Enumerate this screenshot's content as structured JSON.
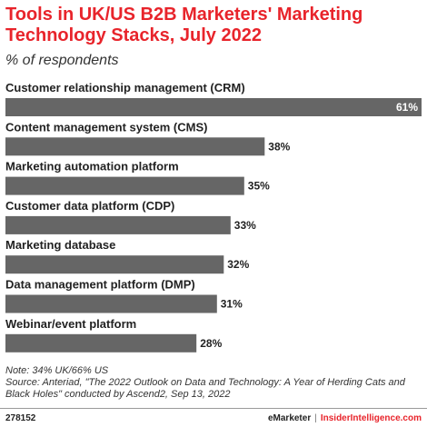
{
  "chart_data": {
    "type": "bar",
    "orientation": "horizontal",
    "title": "Tools in UK/US B2B Marketers' Marketing Technology Stacks, July 2022",
    "subtitle": "% of respondents",
    "categories": [
      "Customer relationship management (CRM)",
      "Content management system (CMS)",
      "Marketing automation platform",
      "Customer data platform (CDP)",
      "Marketing database",
      "Data management platform (DMP)",
      "Webinar/event platform"
    ],
    "values": [
      61,
      38,
      35,
      33,
      32,
      31,
      28
    ],
    "value_labels": [
      "61%",
      "38%",
      "35%",
      "33%",
      "32%",
      "31%",
      "28%"
    ],
    "bar_color": "#666666",
    "grid": false,
    "legend": "none"
  },
  "footnote": {
    "note": "Note: 34% UK/66% US",
    "source": "Source: Anteriad, \"The 2022 Outlook on Data and Technology: A Year of Herding Cats and Black Holes\" conducted by Ascend2, Sep 13, 2022"
  },
  "footer": {
    "chart_id": "278152",
    "brand_left": "eMarketer",
    "separator": "|",
    "brand_right": "InsiderIntelligence.com"
  },
  "colors": {
    "title": "#e8242b",
    "bar": "#666666",
    "text": "#222222"
  }
}
